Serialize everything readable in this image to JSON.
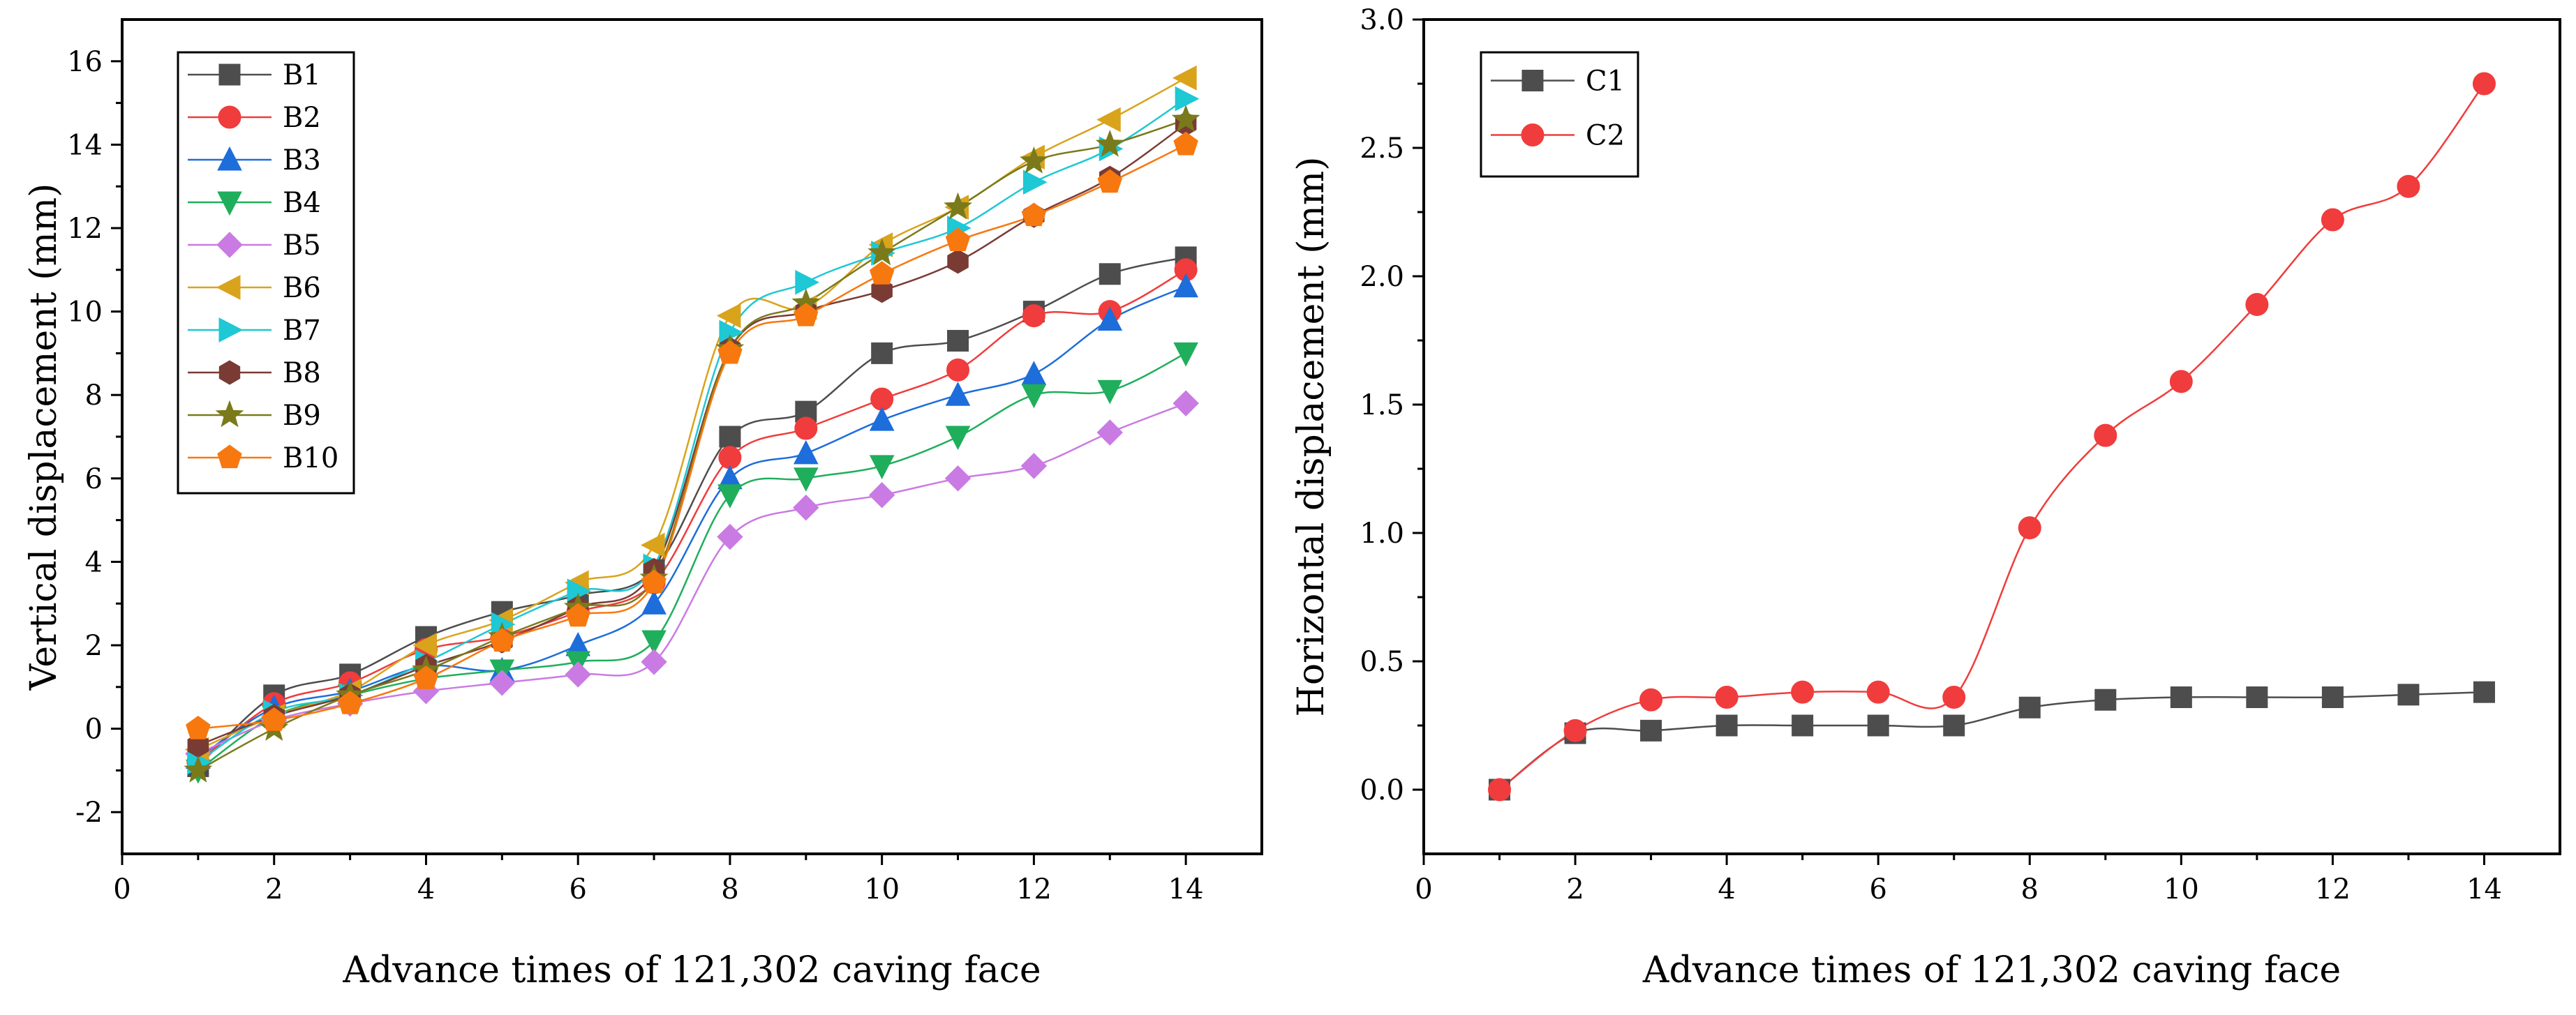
{
  "chart_data": [
    {
      "type": "line",
      "title": "",
      "xlabel": "Advance times of 121,302 caving face",
      "ylabel": "Vertical displacement (mm)",
      "xlim": [
        0,
        15
      ],
      "ylim": [
        -3,
        17
      ],
      "xticks": [
        0,
        2,
        4,
        6,
        8,
        10,
        12,
        14
      ],
      "yticks": [
        -2,
        0,
        2,
        4,
        6,
        8,
        10,
        12,
        14,
        16
      ],
      "xtick_labels": [
        "0",
        "2",
        "4",
        "6",
        "8",
        "10",
        "12",
        "14"
      ],
      "ytick_labels": [
        "-2",
        "0",
        "2",
        "4",
        "6",
        "8",
        "10",
        "12",
        "14",
        "16"
      ],
      "grid": false,
      "legend_position": "top-left",
      "x": [
        1,
        2,
        3,
        4,
        5,
        6,
        7,
        8,
        9,
        10,
        11,
        12,
        13,
        14
      ],
      "series": [
        {
          "name": "B1",
          "color": "#4d4d4d",
          "marker": "square",
          "values": [
            -0.9,
            0.8,
            1.3,
            2.2,
            2.8,
            3.2,
            3.8,
            7.0,
            7.6,
            9.0,
            9.3,
            10.0,
            10.9,
            11.3
          ]
        },
        {
          "name": "B2",
          "color": "#f03c3c",
          "marker": "circle",
          "values": [
            -0.8,
            0.6,
            1.1,
            1.9,
            2.2,
            2.8,
            3.5,
            6.5,
            7.2,
            7.9,
            8.6,
            9.9,
            10.0,
            11.0
          ]
        },
        {
          "name": "B3",
          "color": "#1d6ddb",
          "marker": "triangle-up",
          "values": [
            -0.7,
            0.5,
            0.9,
            1.5,
            1.4,
            2.0,
            3.0,
            6.0,
            6.6,
            7.4,
            8.0,
            8.5,
            9.8,
            10.6
          ]
        },
        {
          "name": "B4",
          "color": "#1fae5b",
          "marker": "triangle-down",
          "values": [
            -1.0,
            0.3,
            0.8,
            1.2,
            1.4,
            1.6,
            2.1,
            5.6,
            6.0,
            6.3,
            7.0,
            8.0,
            8.1,
            9.0
          ]
        },
        {
          "name": "B5",
          "color": "#c97be3",
          "marker": "diamond",
          "values": [
            -0.6,
            0.2,
            0.6,
            0.9,
            1.1,
            1.3,
            1.6,
            4.6,
            5.3,
            5.6,
            6.0,
            6.3,
            7.1,
            7.8
          ]
        },
        {
          "name": "B6",
          "color": "#d9a31c",
          "marker": "triangle-left",
          "values": [
            -0.5,
            0.3,
            0.9,
            2.0,
            2.6,
            3.5,
            4.4,
            9.9,
            10.1,
            11.6,
            12.5,
            13.7,
            14.6,
            15.6
          ]
        },
        {
          "name": "B7",
          "color": "#1ec8d4",
          "marker": "triangle-right",
          "values": [
            -0.8,
            0.4,
            0.8,
            1.6,
            2.5,
            3.3,
            3.9,
            9.5,
            10.7,
            11.4,
            12.0,
            13.1,
            13.9,
            15.1
          ]
        },
        {
          "name": "B8",
          "color": "#7a3b35",
          "marker": "hexagon",
          "values": [
            -0.4,
            0.3,
            0.8,
            1.5,
            2.1,
            2.9,
            3.8,
            9.1,
            10.0,
            10.5,
            11.2,
            12.3,
            13.2,
            14.5
          ]
        },
        {
          "name": "B9",
          "color": "#7a7a1a",
          "marker": "star",
          "values": [
            -1.0,
            0.0,
            0.8,
            1.4,
            2.2,
            2.9,
            3.6,
            9.1,
            10.2,
            11.4,
            12.5,
            13.6,
            14.0,
            14.6
          ]
        },
        {
          "name": "B10",
          "color": "#f7780f",
          "marker": "pentagon",
          "values": [
            0.0,
            0.2,
            0.6,
            1.2,
            2.1,
            2.7,
            3.5,
            9.0,
            9.9,
            10.9,
            11.7,
            12.3,
            13.1,
            14.0
          ]
        }
      ]
    },
    {
      "type": "line",
      "title": "",
      "xlabel": "Advance times of 121,302 caving face",
      "ylabel": "Horizontal displacement (mm)",
      "xlim": [
        0,
        15
      ],
      "ylim": [
        -0.25,
        3.0
      ],
      "xticks": [
        0,
        2,
        4,
        6,
        8,
        10,
        12,
        14
      ],
      "yticks": [
        0.0,
        0.5,
        1.0,
        1.5,
        2.0,
        2.5,
        3.0
      ],
      "xtick_labels": [
        "0",
        "2",
        "4",
        "6",
        "8",
        "10",
        "12",
        "14"
      ],
      "ytick_labels": [
        "0.0",
        "0.5",
        "1.0",
        "1.5",
        "2.0",
        "2.5",
        "3.0"
      ],
      "grid": false,
      "legend_position": "top-left",
      "x": [
        1,
        2,
        3,
        4,
        5,
        6,
        7,
        8,
        9,
        10,
        11,
        12,
        13,
        14
      ],
      "series": [
        {
          "name": "C1",
          "color": "#4d4d4d",
          "marker": "square",
          "values": [
            0.0,
            0.22,
            0.23,
            0.25,
            0.25,
            0.25,
            0.25,
            0.32,
            0.35,
            0.36,
            0.36,
            0.36,
            0.37,
            0.38
          ]
        },
        {
          "name": "C2",
          "color": "#f03c3c",
          "marker": "circle",
          "values": [
            0.0,
            0.23,
            0.35,
            0.36,
            0.38,
            0.38,
            0.36,
            1.02,
            1.38,
            1.59,
            1.89,
            2.22,
            2.35,
            2.75
          ]
        }
      ]
    }
  ]
}
